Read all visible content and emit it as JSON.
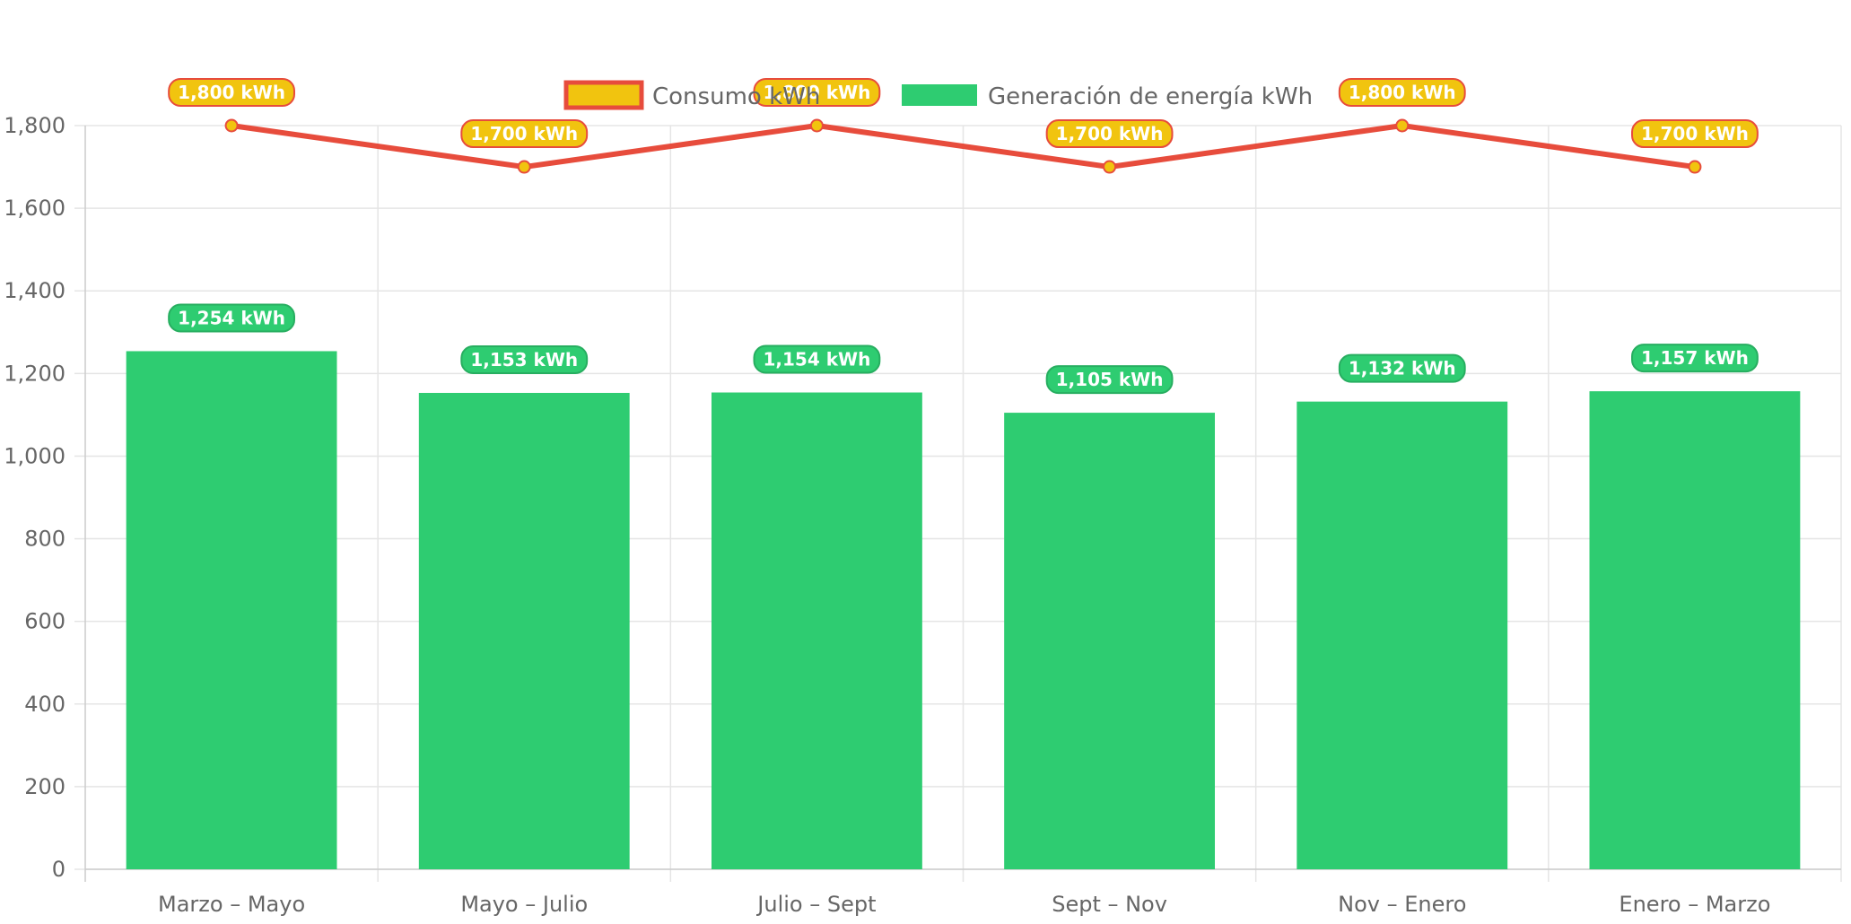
{
  "colors": {
    "bar_fill": "#2ecc71",
    "line_stroke": "#e74c3c",
    "point_fill": "#f1c40f",
    "point_stroke": "#e74c3c",
    "grid": "#e5e5e5",
    "axis_text": "#666666",
    "line_label_bg": "#f1c40f",
    "line_label_border": "#e74c3c",
    "bar_label_bg": "#2ecc71",
    "bar_label_border": "#27ae60"
  },
  "chart_data": {
    "type": "bar",
    "categories": [
      "Marzo – Mayo",
      "Mayo – Julio",
      "Julio – Sept",
      "Sept – Nov",
      "Nov – Enero",
      "Enero – Marzo"
    ],
    "series": [
      {
        "name": "Consumo kWh",
        "type": "line",
        "values": [
          1800,
          1700,
          1800,
          1700,
          1800,
          1700
        ],
        "labels": [
          "1,800 kWh",
          "1,700 kWh",
          "1,800 kWh",
          "1,700 kWh",
          "1,800 kWh",
          "1,700 kWh"
        ]
      },
      {
        "name": "Generación de energía kWh",
        "type": "bar",
        "values": [
          1254,
          1153,
          1154,
          1105,
          1132,
          1157
        ],
        "labels": [
          "1,254 kWh",
          "1,153 kWh",
          "1,154 kWh",
          "1,105 kWh",
          "1,132 kWh",
          "1,157 kWh"
        ]
      }
    ],
    "y_ticks": [
      "0",
      "200",
      "400",
      "600",
      "800",
      "1,000",
      "1,200",
      "1,400",
      "1,600",
      "1,800"
    ],
    "ylim": [
      0,
      1800
    ],
    "grid": true,
    "legend_position": "top"
  }
}
